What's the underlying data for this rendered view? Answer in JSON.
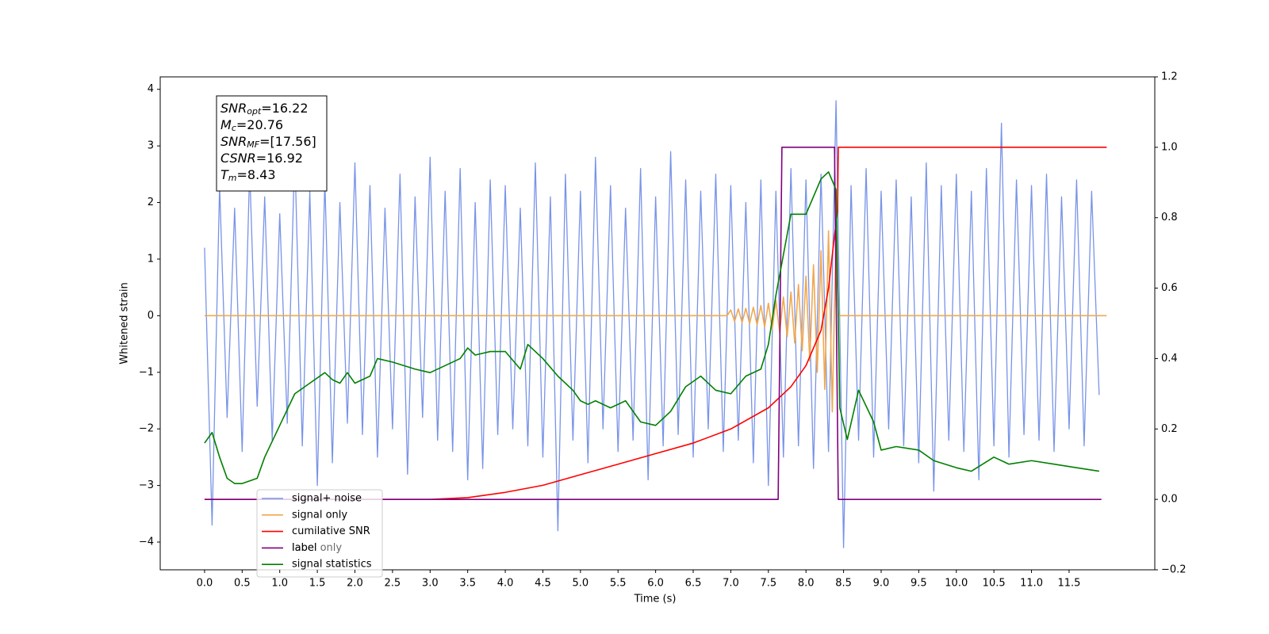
{
  "chart_data": {
    "type": "line",
    "x_label": "Time (s)",
    "y_label": "Whitened strain",
    "xlim": [
      -0.59,
      12.64
    ],
    "ylim": [
      -4.49,
      4.22
    ],
    "y2lim": [
      -0.2,
      1.2
    ],
    "xticks": [
      {
        "value": 0,
        "label": "0.0"
      },
      0.5,
      {
        "value": 1,
        "label": "1.0"
      },
      1.5,
      {
        "value": 2,
        "label": "2.0"
      },
      2.5,
      {
        "value": 3,
        "label": "3.0"
      },
      3.5,
      {
        "value": 4,
        "label": "4.0"
      },
      4.5,
      {
        "value": 5,
        "label": "5.0"
      },
      5.5,
      {
        "value": 6,
        "label": "6.0"
      },
      6.5,
      {
        "value": 7,
        "label": "7.0"
      },
      7.5,
      {
        "value": 8,
        "label": "8.0"
      },
      8.5,
      {
        "value": 9,
        "label": "9.0"
      },
      9.5,
      {
        "value": 10,
        "label": "10.0"
      },
      10.5,
      {
        "value": 11,
        "label": "11.0"
      },
      11.5
    ],
    "yticks": [
      {
        "value": -4,
        "label": "−4"
      },
      {
        "value": -3,
        "label": "−3"
      },
      {
        "value": -2,
        "label": "−2"
      },
      {
        "value": -1,
        "label": "−1"
      },
      0,
      1,
      2,
      3,
      4
    ],
    "y2ticks": [
      {
        "value": -0.2,
        "label": "−0.2"
      },
      {
        "value": 0,
        "label": "0.0"
      },
      0.2,
      0.4,
      0.6,
      0.8,
      {
        "value": 1,
        "label": "1.0"
      },
      1.2
    ],
    "legend_position": "lower left",
    "legend_ghost": "label only",
    "annotations": [
      {
        "main": "SNR",
        "sub": "opt",
        "rest": "=16.22"
      },
      {
        "main": "M",
        "sub": "c",
        "rest": "=20.76"
      },
      {
        "main": "SNR",
        "sub": "MF",
        "rest": "=[17.56]"
      },
      {
        "main": "CSNR",
        "sub": null,
        "rest": "=16.92"
      },
      {
        "main": "T",
        "sub": "m",
        "rest": "=8.43"
      }
    ],
    "series": [
      {
        "name": "signal+ noise",
        "color": "#7893e8",
        "axis": "y",
        "x": [
          0,
          0.1,
          0.2,
          0.3,
          0.4,
          0.5,
          0.6,
          0.7,
          0.8,
          0.9,
          1,
          1.1,
          1.2,
          1.3,
          1.4,
          1.5,
          1.6,
          1.7,
          1.8,
          1.9,
          2,
          2.1,
          2.2,
          2.3,
          2.4,
          2.5,
          2.6,
          2.7,
          2.8,
          2.9,
          3,
          3.1,
          3.2,
          3.3,
          3.4,
          3.5,
          3.6,
          3.7,
          3.8,
          3.9,
          4,
          4.1,
          4.2,
          4.3,
          4.4,
          4.5,
          4.6,
          4.7,
          4.8,
          4.9,
          5,
          5.1,
          5.2,
          5.3,
          5.4,
          5.5,
          5.6,
          5.7,
          5.8,
          5.9,
          6,
          6.1,
          6.2,
          6.3,
          6.4,
          6.5,
          6.6,
          6.7,
          6.8,
          6.9,
          7,
          7.1,
          7.2,
          7.3,
          7.4,
          7.5,
          7.6,
          7.7,
          7.8,
          7.9,
          8,
          8.1,
          8.2,
          8.3,
          8.4,
          8.5,
          8.6,
          8.7,
          8.8,
          8.9,
          9,
          9.1,
          9.2,
          9.3,
          9.4,
          9.5,
          9.6,
          9.7,
          9.8,
          9.9,
          10,
          10.1,
          10.2,
          10.3,
          10.4,
          10.5,
          10.6,
          10.7,
          10.8,
          10.9,
          11,
          11.1,
          11.2,
          11.3,
          11.4,
          11.5,
          11.6,
          11.7,
          11.8,
          11.9
        ],
        "values": [
          1.2,
          -3.7,
          2.3,
          -1.8,
          1.9,
          -2.4,
          2.6,
          -1.6,
          2.1,
          -2.2,
          1.8,
          -1.9,
          2.9,
          -2.3,
          2.2,
          -3.0,
          2.4,
          -2.6,
          2.0,
          -1.9,
          2.7,
          -2.1,
          2.3,
          -2.5,
          1.9,
          -2.0,
          2.5,
          -2.8,
          2.1,
          -1.8,
          2.8,
          -2.2,
          2.2,
          -2.4,
          2.6,
          -2.9,
          2.0,
          -2.7,
          2.4,
          -2.1,
          2.3,
          -2.0,
          1.9,
          -2.3,
          2.7,
          -2.5,
          2.1,
          -3.8,
          2.5,
          -2.2,
          2.2,
          -2.6,
          2.8,
          -2.0,
          2.3,
          -2.4,
          1.9,
          -2.2,
          2.6,
          -2.9,
          2.1,
          -2.3,
          2.9,
          -2.1,
          2.4,
          -2.5,
          2.2,
          -2.0,
          2.5,
          -2.4,
          2.3,
          -2.2,
          2.0,
          -2.6,
          2.4,
          -3.0,
          2.2,
          -2.5,
          2.6,
          -2.3,
          2.4,
          -2.7,
          2.5,
          -2.4,
          3.8,
          -4.1,
          2.3,
          -2.2,
          2.6,
          -2.5,
          2.2,
          -2.0,
          2.4,
          -2.3,
          2.1,
          -2.6,
          2.7,
          -3.1,
          2.3,
          -2.2,
          2.5,
          -2.4,
          2.2,
          -2.9,
          2.6,
          -2.3,
          3.4,
          -2.5,
          2.4,
          -2.1,
          2.3,
          -2.2,
          2.5,
          -2.4,
          2.1,
          -2.0,
          2.4,
          -2.3,
          2.2,
          -1.4
        ]
      },
      {
        "name": "signal only",
        "color": "#f0a850",
        "axis": "y",
        "x": [
          0,
          6.95,
          7,
          7.05,
          7.1,
          7.15,
          7.2,
          7.25,
          7.3,
          7.35,
          7.4,
          7.45,
          7.5,
          7.55,
          7.6,
          7.65,
          7.7,
          7.75,
          7.8,
          7.85,
          7.9,
          7.95,
          8,
          8.05,
          8.1,
          8.15,
          8.2,
          8.25,
          8.3,
          8.35,
          8.4,
          8.43,
          12
        ],
        "values": [
          0,
          0,
          0.1,
          -0.1,
          0.12,
          -0.12,
          0.13,
          -0.14,
          0.15,
          -0.16,
          0.18,
          -0.2,
          0.22,
          -0.24,
          0.27,
          -0.3,
          0.33,
          -0.37,
          0.42,
          -0.48,
          0.55,
          -0.62,
          0.7,
          -0.8,
          0.9,
          -1.0,
          1.15,
          -1.3,
          1.5,
          -1.7,
          1.5,
          0,
          0
        ]
      },
      {
        "name": "cumilative SNR",
        "color": "#ff0000",
        "axis": "y2",
        "x": [
          0,
          3,
          3.5,
          4,
          4.5,
          5,
          5.5,
          6,
          6.5,
          7,
          7.5,
          7.8,
          8,
          8.2,
          8.3,
          8.38,
          8.42,
          8.43,
          12
        ],
        "values": [
          0,
          0,
          0.005,
          0.02,
          0.04,
          0.07,
          0.1,
          0.13,
          0.16,
          0.2,
          0.26,
          0.32,
          0.38,
          0.48,
          0.6,
          0.75,
          0.82,
          1,
          1
        ]
      },
      {
        "name": "label",
        "color": "#800080",
        "axis": "y2",
        "x": [
          0,
          7.63,
          7.68,
          8.38,
          8.43,
          11.93
        ],
        "values": [
          0,
          0,
          1,
          1,
          0,
          0
        ]
      },
      {
        "name": "signal statistics",
        "color": "#008000",
        "axis": "y2",
        "x": [
          0,
          0.1,
          0.2,
          0.3,
          0.4,
          0.5,
          0.7,
          0.8,
          1,
          1.2,
          1.4,
          1.6,
          1.7,
          1.8,
          1.9,
          2,
          2.2,
          2.3,
          2.5,
          2.8,
          3,
          3.2,
          3.4,
          3.5,
          3.6,
          3.8,
          4,
          4.2,
          4.3,
          4.5,
          4.7,
          4.9,
          5,
          5.1,
          5.2,
          5.4,
          5.6,
          5.8,
          6,
          6.2,
          6.4,
          6.6,
          6.8,
          7,
          7.2,
          7.4,
          7.5,
          7.6,
          7.8,
          8,
          8.1,
          8.2,
          8.3,
          8.4,
          8.45,
          8.55,
          8.7,
          8.9,
          9,
          9.2,
          9.5,
          9.7,
          10,
          10.2,
          10.5,
          10.7,
          11,
          11.3,
          11.6,
          11.9
        ],
        "values": [
          0.16,
          0.19,
          0.12,
          0.06,
          0.045,
          0.045,
          0.06,
          0.12,
          0.21,
          0.3,
          0.33,
          0.36,
          0.34,
          0.33,
          0.36,
          0.33,
          0.35,
          0.4,
          0.39,
          0.37,
          0.36,
          0.38,
          0.4,
          0.43,
          0.41,
          0.42,
          0.42,
          0.37,
          0.44,
          0.4,
          0.35,
          0.31,
          0.28,
          0.27,
          0.28,
          0.26,
          0.28,
          0.22,
          0.21,
          0.25,
          0.32,
          0.35,
          0.31,
          0.3,
          0.35,
          0.37,
          0.44,
          0.58,
          0.81,
          0.81,
          0.86,
          0.91,
          0.93,
          0.88,
          0.26,
          0.17,
          0.31,
          0.22,
          0.14,
          0.15,
          0.14,
          0.11,
          0.09,
          0.08,
          0.12,
          0.1,
          0.11,
          0.1,
          0.09,
          0.08
        ]
      }
    ]
  }
}
